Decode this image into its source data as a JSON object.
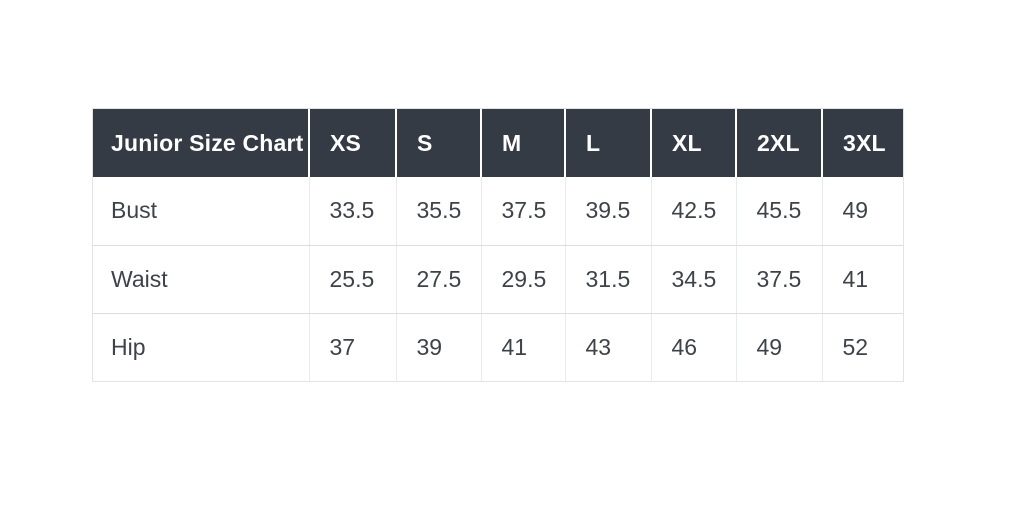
{
  "colors": {
    "header_bg": "#343b44",
    "header_text": "#ffffff",
    "body_text": "#3e4349",
    "border": "#e2e3e4",
    "page_bg": "#ffffff"
  },
  "chart_data": {
    "type": "table",
    "title": "Junior Size Chart",
    "columns": [
      "Junior Size Chart",
      "XS",
      "S",
      "M",
      "L",
      "XL",
      "2XL",
      "3XL"
    ],
    "rows": [
      [
        "Bust",
        33.5,
        35.5,
        37.5,
        39.5,
        42.5,
        45.5,
        49
      ],
      [
        "Waist",
        25.5,
        27.5,
        29.5,
        31.5,
        34.5,
        37.5,
        41
      ],
      [
        "Hip",
        37,
        39,
        41,
        43,
        46,
        49,
        52
      ]
    ]
  }
}
